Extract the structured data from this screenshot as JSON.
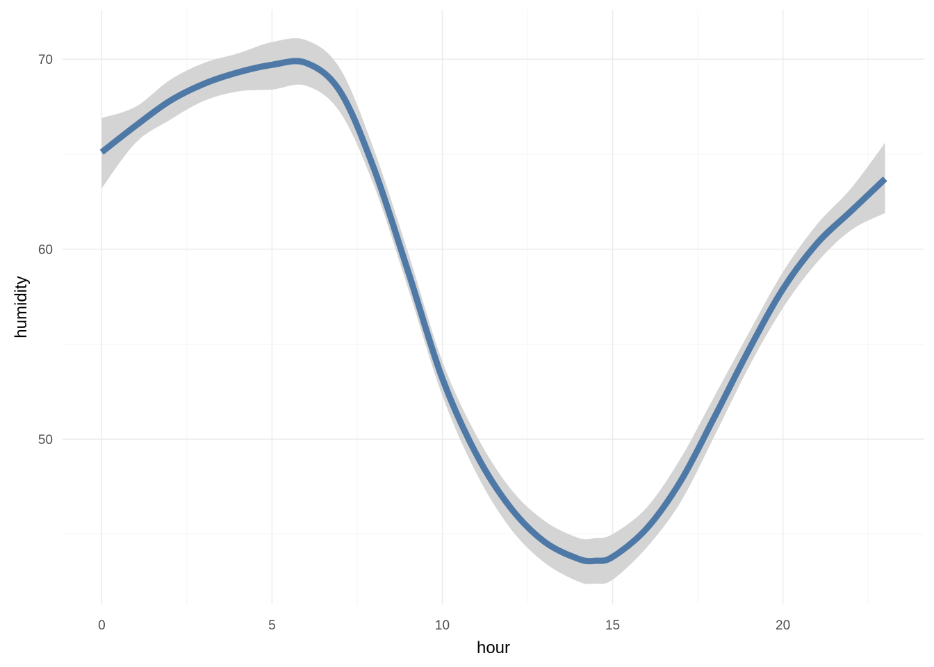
{
  "chart_data": {
    "type": "line",
    "title": "",
    "xlabel": "hour",
    "ylabel": "humidity",
    "xlim": [
      -1.15,
      24.15
    ],
    "ylim": [
      41.3,
      72.6
    ],
    "x_ticks": [
      0,
      5,
      10,
      15,
      20
    ],
    "x_tick_labels": [
      "0",
      "5",
      "10",
      "15",
      "20"
    ],
    "x_minor_ticks": [
      2.5,
      7.5,
      12.5,
      17.5,
      22.5
    ],
    "y_ticks": [
      50,
      60,
      70
    ],
    "y_tick_labels": [
      "50",
      "60",
      "70"
    ],
    "y_minor_ticks": [
      45,
      55,
      65
    ],
    "grid": true,
    "legend": "none",
    "colors": {
      "line": "#4e79a7",
      "ribbon": "#d4d4d4",
      "grid_major": "#ebebeb",
      "grid_minor": "#f4f4f4"
    },
    "series": [
      {
        "x": [
          0,
          1,
          2,
          3,
          4,
          5,
          6,
          7,
          8,
          9,
          10,
          11,
          12,
          13,
          14,
          14.5,
          15,
          16,
          17,
          18,
          19,
          20,
          21,
          22,
          23
        ],
        "y": [
          65.1,
          66.5,
          67.8,
          68.7,
          69.3,
          69.7,
          69.8,
          68.3,
          64.2,
          58.8,
          53.2,
          49.2,
          46.4,
          44.6,
          43.7,
          43.6,
          43.8,
          45.3,
          47.8,
          51.2,
          54.7,
          57.9,
          60.3,
          62.0,
          63.7
        ],
        "lower": [
          63.2,
          65.6,
          66.8,
          67.8,
          68.3,
          68.4,
          68.6,
          67.2,
          63.3,
          57.9,
          52.3,
          48.2,
          45.3,
          43.5,
          42.5,
          42.4,
          42.6,
          44.3,
          46.7,
          50.2,
          53.8,
          56.9,
          59.3,
          61.0,
          61.9
        ],
        "upper": [
          66.9,
          67.5,
          68.9,
          69.8,
          70.3,
          70.9,
          71.0,
          69.5,
          65.2,
          59.8,
          54.1,
          50.2,
          47.4,
          45.7,
          44.8,
          44.8,
          45.0,
          46.4,
          49.0,
          52.3,
          55.6,
          58.8,
          61.3,
          63.2,
          65.6
        ]
      }
    ]
  }
}
